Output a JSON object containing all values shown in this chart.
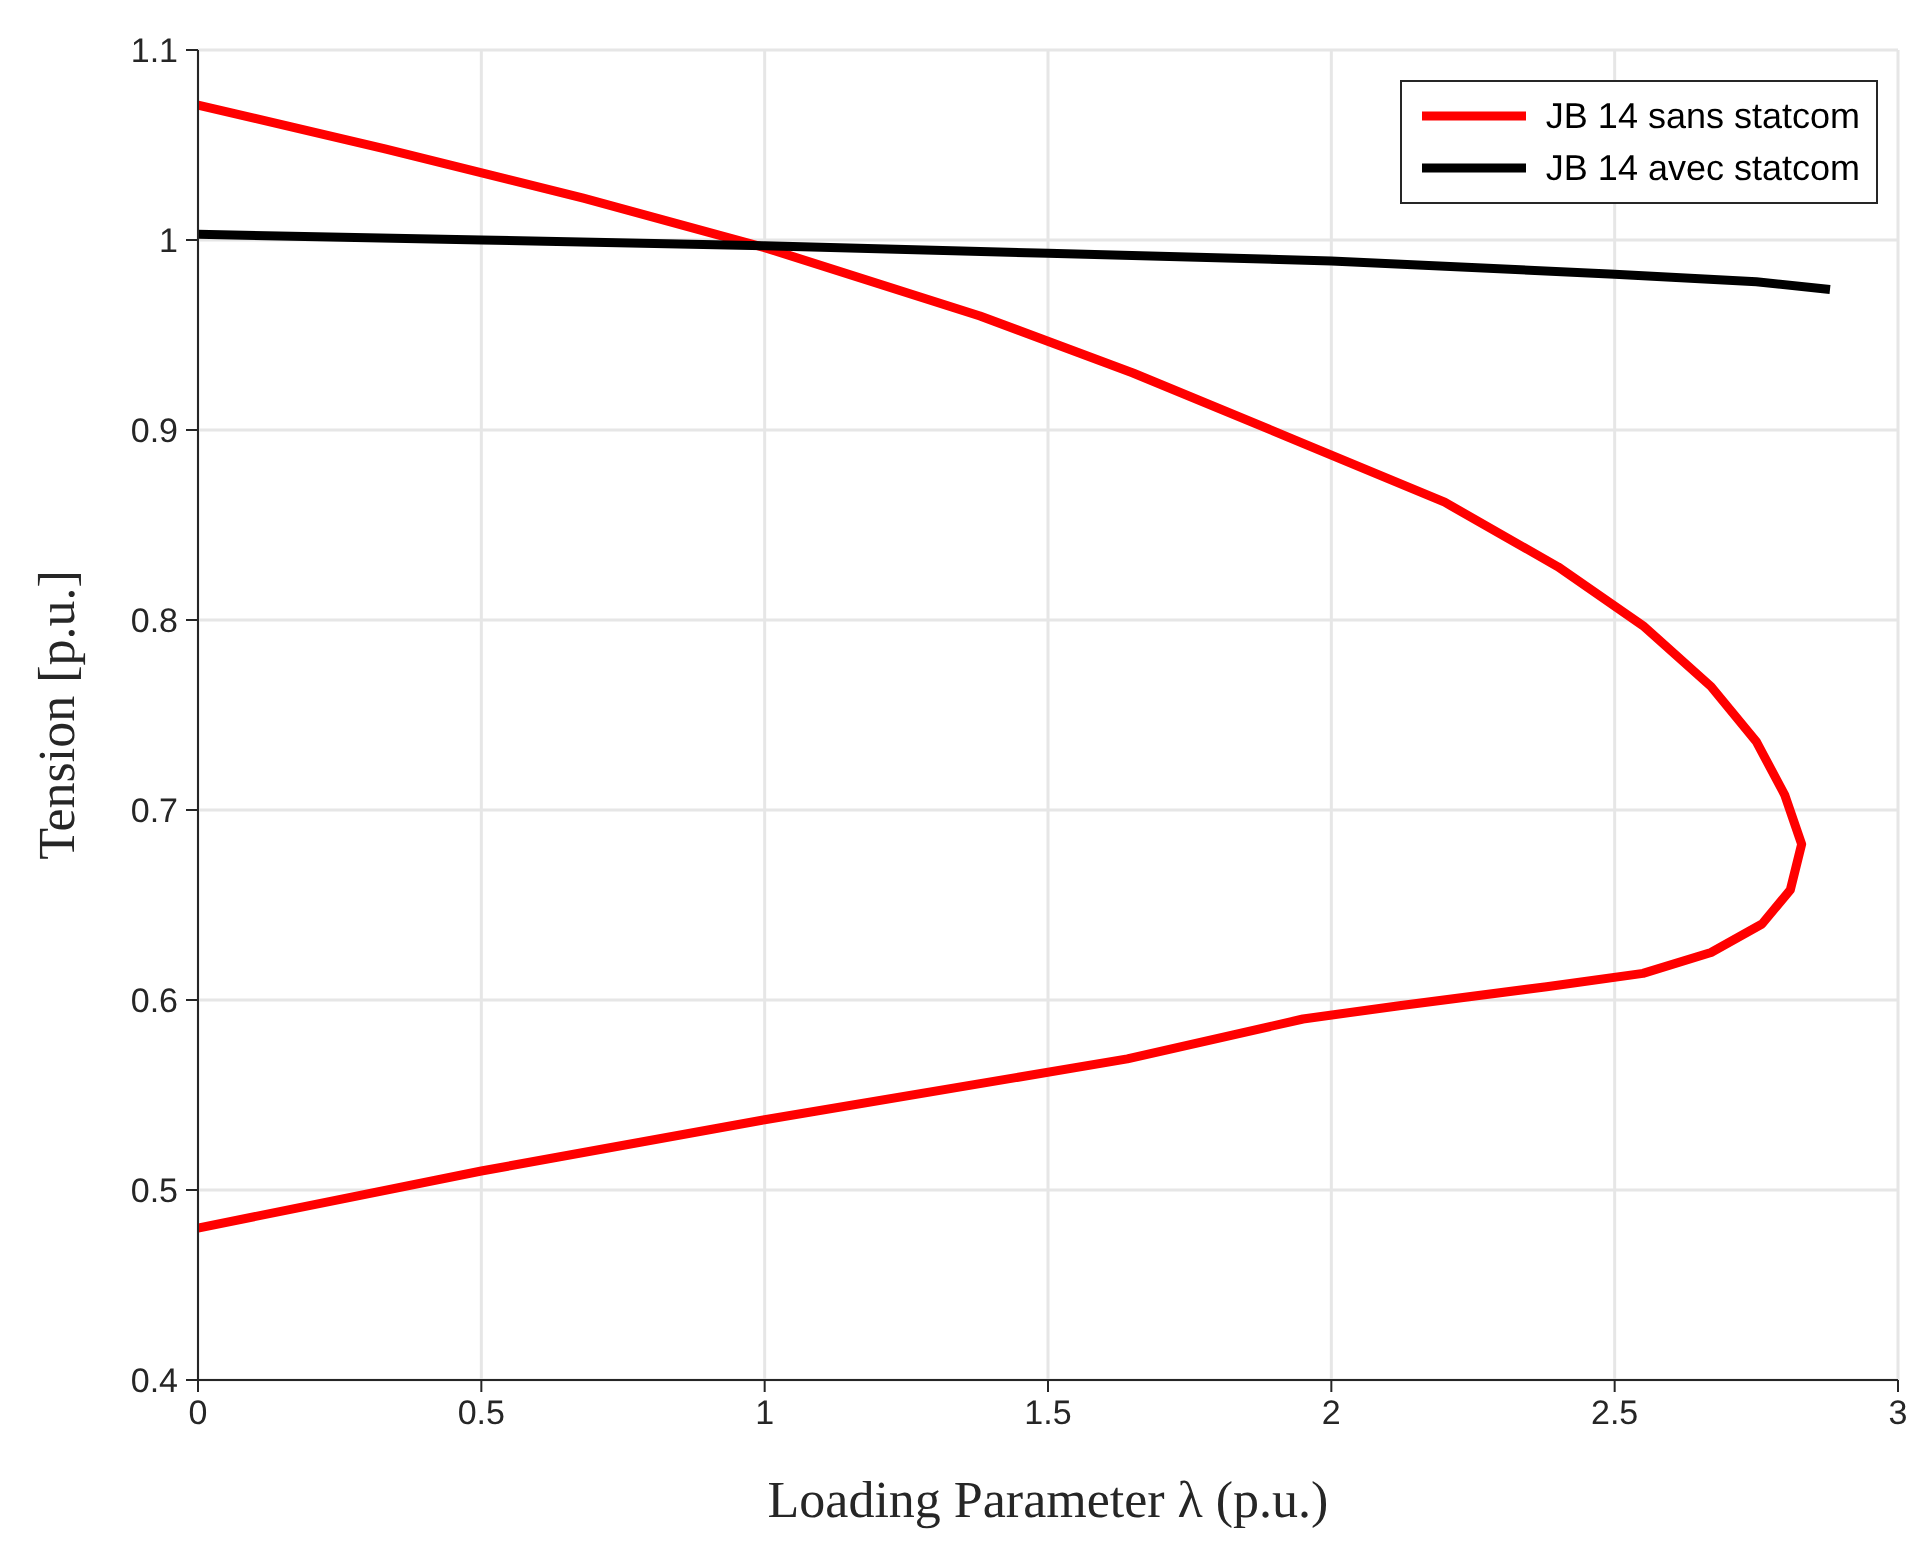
{
  "chart_data": {
    "type": "line",
    "xlabel": "Loading Parameter λ (p.u.)",
    "ylabel": "Tension [p.u.]",
    "xlim": [
      0,
      3
    ],
    "xticks": [
      0,
      0.5,
      1,
      1.5,
      2,
      2.5,
      3
    ],
    "ylim": [
      0.4,
      1.1
    ],
    "yticks": [
      0.4,
      0.5,
      0.6,
      0.7,
      0.8,
      0.9,
      1,
      1.1
    ],
    "grid": true,
    "legend": "top right",
    "line_style": "solid",
    "series": [
      {
        "name": "JB 14 sans statcom",
        "color": "#ff0000",
        "x": [
          0,
          0.33,
          0.68,
          1.0,
          1.38,
          1.65,
          1.95,
          2.2,
          2.4,
          2.55,
          2.67,
          2.75,
          2.8,
          2.83,
          2.81,
          2.76,
          2.67,
          2.55,
          2.38,
          2.12,
          1.95,
          1.64,
          1.38,
          1.0,
          0.5,
          0
        ],
        "values": [
          1.071,
          1.048,
          1.022,
          0.996,
          0.96,
          0.93,
          0.893,
          0.862,
          0.828,
          0.797,
          0.765,
          0.736,
          0.708,
          0.682,
          0.658,
          0.64,
          0.625,
          0.614,
          0.607,
          0.597,
          0.59,
          0.569,
          0.556,
          0.537,
          0.51,
          0.48
        ]
      },
      {
        "name": "JB 14 avec statcom",
        "color": "#000000",
        "x": [
          0,
          0.5,
          1,
          1.5,
          2,
          2.5,
          2.75,
          2.88
        ],
        "values": [
          1.003,
          1.0,
          0.997,
          0.993,
          0.989,
          0.982,
          0.978,
          0.974
        ]
      }
    ]
  }
}
